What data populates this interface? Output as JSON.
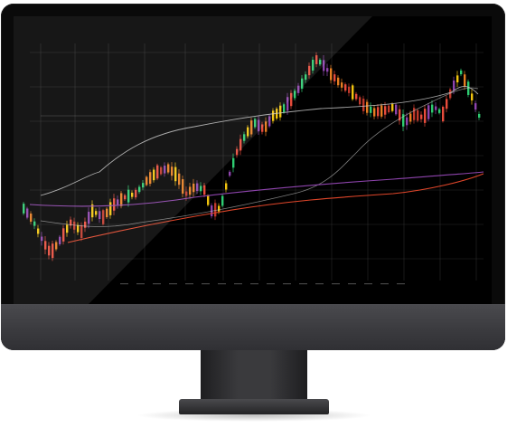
{
  "scene": "desktop-monitor-with-trading-chart",
  "colors": {
    "screen_bg": "#000000",
    "grid": "#2a2a2a",
    "candle_up": [
      "#2ecc71",
      "#f1c40f",
      "#e67e22"
    ],
    "candle_down": [
      "#e74c3c",
      "#c0392b",
      "#8e44ad"
    ],
    "band": "#cfcfcf",
    "ma_purple": "#8e44ad",
    "ma_red": "#e0462a"
  },
  "icons": {
    "brand": "none"
  }
}
